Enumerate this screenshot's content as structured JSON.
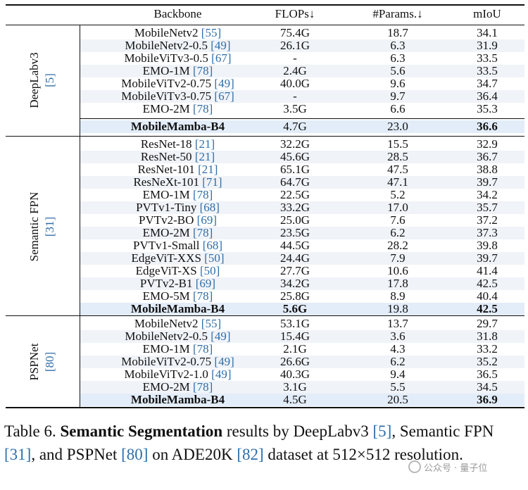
{
  "table": {
    "headers": [
      "Backbone",
      "FLOPs↓",
      "#Params.↓",
      "mIoU"
    ],
    "sections": [
      {
        "method": "DeepLabv3",
        "ref": "[5]",
        "rows": [
          {
            "name": "MobileNetv2",
            "ref": "[55]",
            "flops": "75.4G",
            "params": "18.7",
            "miou": "34.1"
          },
          {
            "name": "MobileNetv2-0.5",
            "ref": "[49]",
            "flops": "26.1G",
            "params": "6.3",
            "miou": "31.9"
          },
          {
            "name": "MobileViTv3-0.5",
            "ref": "[67]",
            "flops": "-",
            "params": "6.3",
            "miou": "33.5"
          },
          {
            "name": "EMO-1M",
            "ref": "[78]",
            "flops": "2.4G",
            "params": "5.6",
            "miou": "33.5"
          },
          {
            "name": "MobileViTv2-0.75",
            "ref": "[49]",
            "flops": "40.0G",
            "params": "9.6",
            "miou": "34.7"
          },
          {
            "name": "MobileViTv3-0.75",
            "ref": "[67]",
            "flops": "-",
            "params": "9.7",
            "miou": "36.4"
          },
          {
            "name": "EMO-2M",
            "ref": "[78]",
            "flops": "3.5G",
            "params": "6.6",
            "miou": "35.3"
          },
          {
            "name": "MobileMamba-B4",
            "ref": "",
            "flops": "4.7G",
            "params": "23.0",
            "miou": "36.6"
          }
        ]
      },
      {
        "method": "Semantic FPN",
        "ref": "[31]",
        "rows": [
          {
            "name": "ResNet-18",
            "ref": "[21]",
            "flops": "32.2G",
            "params": "15.5",
            "miou": "32.9"
          },
          {
            "name": "ResNet-50",
            "ref": "[21]",
            "flops": "45.6G",
            "params": "28.5",
            "miou": "36.7"
          },
          {
            "name": "ResNet-101",
            "ref": "[21]",
            "flops": "65.1G",
            "params": "47.5",
            "miou": "38.8"
          },
          {
            "name": "ResNeXt-101",
            "ref": "[71]",
            "flops": "64.7G",
            "params": "47.1",
            "miou": "39.7"
          },
          {
            "name": "EMO-1M",
            "ref": "[78]",
            "flops": "22.5G",
            "params": "5.2",
            "miou": "34.2"
          },
          {
            "name": "PVTv1-Tiny",
            "ref": "[68]",
            "flops": "33.2G",
            "params": "17.0",
            "miou": "35.7"
          },
          {
            "name": "PVTv2-BO",
            "ref": "[69]",
            "flops": "25.0G",
            "params": "7.6",
            "miou": "37.2"
          },
          {
            "name": "EMO-2M",
            "ref": "[78]",
            "flops": "23.5G",
            "params": "6.2",
            "miou": "37.3"
          },
          {
            "name": "PVTv1-Small",
            "ref": "[68]",
            "flops": "44.5G",
            "params": "28.2",
            "miou": "39.8"
          },
          {
            "name": "EdgeViT-XXS",
            "ref": "[50]",
            "flops": "24.4G",
            "params": "7.9",
            "miou": "39.7"
          },
          {
            "name": "EdgeViT-XS",
            "ref": "[50]",
            "flops": "27.7G",
            "params": "10.6",
            "miou": "41.4"
          },
          {
            "name": "PVTv2-B1",
            "ref": "[69]",
            "flops": "34.2G",
            "params": "17.8",
            "miou": "42.5"
          },
          {
            "name": "EMO-5M",
            "ref": "[78]",
            "flops": "25.8G",
            "params": "8.9",
            "miou": "40.4"
          },
          {
            "name": "MobileMamba-B4",
            "ref": "",
            "flops": "5.6G",
            "params": "19.8",
            "miou": "42.5"
          }
        ]
      },
      {
        "method": "PSPNet",
        "ref": "[80]",
        "rows": [
          {
            "name": "MobileNetv2",
            "ref": "[55]",
            "flops": "53.1G",
            "params": "13.7",
            "miou": "29.7"
          },
          {
            "name": "MobileNetv2-0.5",
            "ref": "[49]",
            "flops": "15.4G",
            "params": "3.6",
            "miou": "31.8"
          },
          {
            "name": "EMO-1M",
            "ref": "[78]",
            "flops": "2.1G",
            "params": "4.3",
            "miou": "33.2"
          },
          {
            "name": "MobileViTv2-0.75",
            "ref": "[49]",
            "flops": "26.6G",
            "params": "6.2",
            "miou": "35.2"
          },
          {
            "name": "MobileViTv2-1.0",
            "ref": "[49]",
            "flops": "40.3G",
            "params": "9.4",
            "miou": "36.5"
          },
          {
            "name": "EMO-2M",
            "ref": "[78]",
            "flops": "3.1G",
            "params": "5.5",
            "miou": "34.5"
          },
          {
            "name": "MobileMamba-B4",
            "ref": "",
            "flops": "4.5G",
            "params": "20.5",
            "miou": "36.9"
          }
        ]
      }
    ]
  },
  "caption": {
    "label": "Table 6.",
    "bold": "Semantic Segmentation",
    "text1": " results by DeepLabv3 ",
    "ref1": "[5]",
    "text2": ", Semantic FPN ",
    "ref2": "[31]",
    "text3": ", and PSPNet ",
    "ref3": "[80]",
    "text4": " on ADE20K ",
    "ref4": "[82]",
    "text5": " dataset at 512×512 resolution."
  },
  "watermark": "公众号 · 量子位"
}
